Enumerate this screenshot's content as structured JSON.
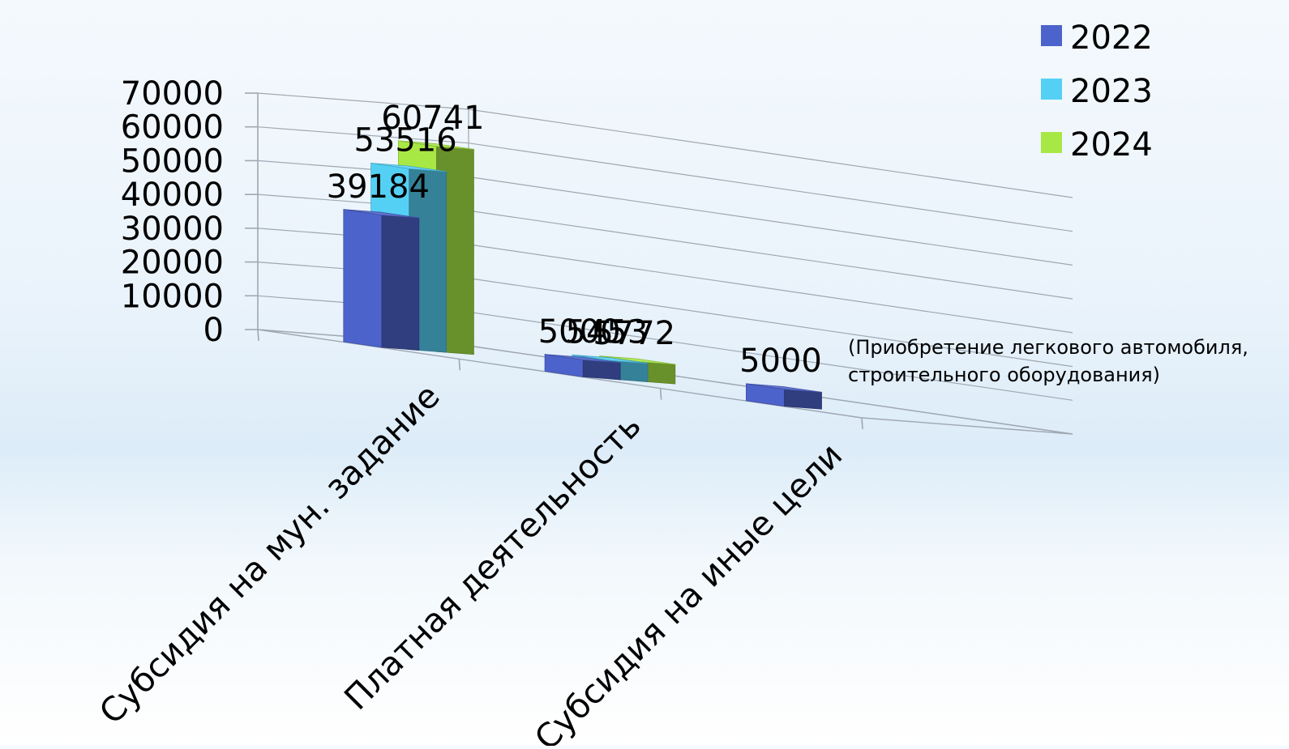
{
  "chart_data": {
    "type": "bar",
    "style": "3d-clustered-column",
    "categories": [
      "Субсидия на мун. задание",
      "Платная деятельность",
      "Субсидия на иные цели"
    ],
    "series": [
      {
        "name": "2022",
        "color": "#4d63cc",
        "values": [
          39184,
          5000,
          5000
        ]
      },
      {
        "name": "2023",
        "color": "#55d0f5",
        "values": [
          53516,
          5453,
          null
        ]
      },
      {
        "name": "2024",
        "color": "#a8e845",
        "values": [
          60741,
          5772,
          null
        ]
      }
    ],
    "data_labels": [
      [
        "39184",
        "5000",
        "5000"
      ],
      [
        "53516",
        "5453",
        ""
      ],
      [
        "60741",
        "5772",
        ""
      ]
    ],
    "y_ticks": [
      "70000",
      "60000",
      "50000",
      "40000",
      "30000",
      "20000",
      "10000",
      "0"
    ],
    "ylim": [
      0,
      70000
    ],
    "grid": true,
    "legend_position": "top-right",
    "annotation": [
      "(Приобретение легкового автомобиля,",
      "строительного оборудования)"
    ]
  }
}
